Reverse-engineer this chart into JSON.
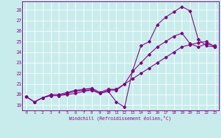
{
  "xlabel": "Windchill (Refroidissement éolien,°C)",
  "bg_color": "#c8ecec",
  "line_color": "#800080",
  "grid_color": "#ffffff",
  "xlim": [
    -0.5,
    23.5
  ],
  "ylim": [
    18.5,
    28.8
  ],
  "yticks": [
    19,
    20,
    21,
    22,
    23,
    24,
    25,
    26,
    27,
    28
  ],
  "xticks": [
    0,
    1,
    2,
    3,
    4,
    5,
    6,
    7,
    8,
    9,
    10,
    11,
    12,
    13,
    14,
    15,
    16,
    17,
    18,
    19,
    20,
    21,
    22,
    23
  ],
  "series1_x": [
    0,
    1,
    2,
    3,
    4,
    5,
    6,
    7,
    8,
    9,
    10,
    11,
    12,
    13,
    14,
    15,
    16,
    17,
    18,
    19,
    20,
    21,
    22,
    23
  ],
  "series1_y": [
    19.8,
    19.3,
    19.7,
    19.9,
    19.9,
    20.0,
    20.1,
    20.3,
    20.4,
    20.1,
    20.3,
    19.3,
    18.8,
    22.3,
    24.6,
    25.0,
    26.6,
    27.3,
    27.8,
    28.3,
    27.9,
    25.2,
    24.6,
    24.5
  ],
  "series2_x": [
    0,
    1,
    2,
    3,
    4,
    5,
    6,
    7,
    8,
    9,
    10,
    11,
    12,
    13,
    14,
    15,
    16,
    17,
    18,
    19,
    20,
    21,
    22,
    23
  ],
  "series2_y": [
    19.8,
    19.3,
    19.7,
    19.9,
    19.9,
    20.1,
    20.3,
    20.4,
    20.5,
    20.1,
    20.4,
    20.4,
    21.0,
    22.2,
    23.0,
    23.8,
    24.5,
    25.0,
    25.5,
    25.8,
    24.8,
    24.5,
    24.8,
    24.6
  ],
  "series3_x": [
    0,
    1,
    2,
    3,
    4,
    5,
    6,
    7,
    8,
    9,
    10,
    11,
    12,
    13,
    14,
    15,
    16,
    17,
    18,
    19,
    20,
    21,
    22,
    23
  ],
  "series3_y": [
    19.8,
    19.3,
    19.7,
    20.0,
    20.0,
    20.2,
    20.4,
    20.5,
    20.6,
    20.2,
    20.5,
    20.5,
    21.0,
    21.5,
    22.0,
    22.5,
    23.0,
    23.5,
    24.0,
    24.5,
    24.7,
    24.9,
    25.0,
    24.5
  ]
}
